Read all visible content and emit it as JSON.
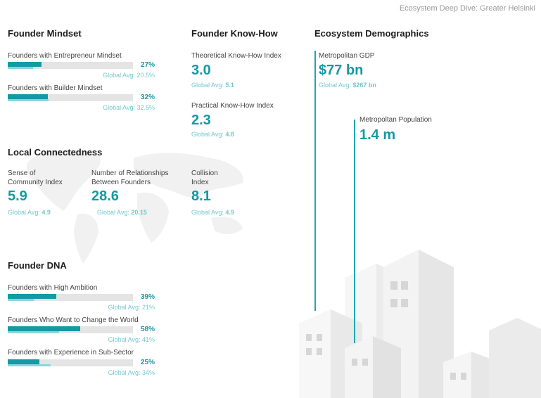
{
  "page_title": "Ecosystem Deep Dive: Greater Helsinki",
  "mindset": {
    "title": "Founder Mindset",
    "items": [
      {
        "label": "Founders with Entrepreneur Mindset",
        "pct": "27%",
        "value": 27,
        "global_value": 20.5,
        "global": "Global Avg: 20.5%"
      },
      {
        "label": "Founders with Builder Mindset",
        "pct": "32%",
        "value": 32,
        "global_value": 32.5,
        "global": "Global Avg: 32.5%"
      }
    ]
  },
  "knowhow": {
    "title": "Founder Know-How",
    "items": [
      {
        "label": "Theoretical Know-How Index",
        "value": "3.0",
        "global_prefix": "Global Avg:",
        "global": "5.1"
      },
      {
        "label": "Practical Know-How Index",
        "value": "2.3",
        "global_prefix": "Global Avg:",
        "global": "4.8"
      }
    ]
  },
  "demographics": {
    "title": "Ecosystem Demographics",
    "gdp": {
      "label": "Metropolitan GDP",
      "value": "$77 bn",
      "global_prefix": "Global Avg:",
      "global": "$267 bn"
    },
    "population": {
      "label": "Metropoltan Population",
      "value": "1.4 m"
    }
  },
  "connectedness": {
    "title": "Local Connectedness",
    "items": [
      {
        "label1": "Sense of",
        "label2": "Community Index",
        "value": "5.9",
        "global_prefix": "Global Avg:",
        "global": "4.9"
      },
      {
        "label1": "Number of Relationships",
        "label2": "Between Founders",
        "value": "28.6",
        "global_prefix": "Global Avg:",
        "global": "20.15"
      },
      {
        "label1": "Collision",
        "label2": "Index",
        "value": "8.1",
        "global_prefix": "Global Avg:",
        "global": "4.9"
      }
    ]
  },
  "dna": {
    "title": "Founder DNA",
    "items": [
      {
        "label": "Founders with High Ambition",
        "pct": "39%",
        "value": 39,
        "global_value": 21,
        "global": "Global Avg: 21%"
      },
      {
        "label": "Founders Who Want to Change the World",
        "pct": "58%",
        "value": 58,
        "global_value": 41,
        "global": "Global Avg: 41%"
      },
      {
        "label": "Founders with Experience in Sub-Sector",
        "pct": "25%",
        "value": 25,
        "global_value": 34,
        "global": "Global Avg: 34%"
      }
    ]
  },
  "colors": {
    "accent": "#139aa3",
    "accent_light": "#74c8cd",
    "bar_track": "#e4e4e4"
  },
  "decor": {
    "map": "world-map-dots",
    "city": "isometric-city-buildings"
  }
}
